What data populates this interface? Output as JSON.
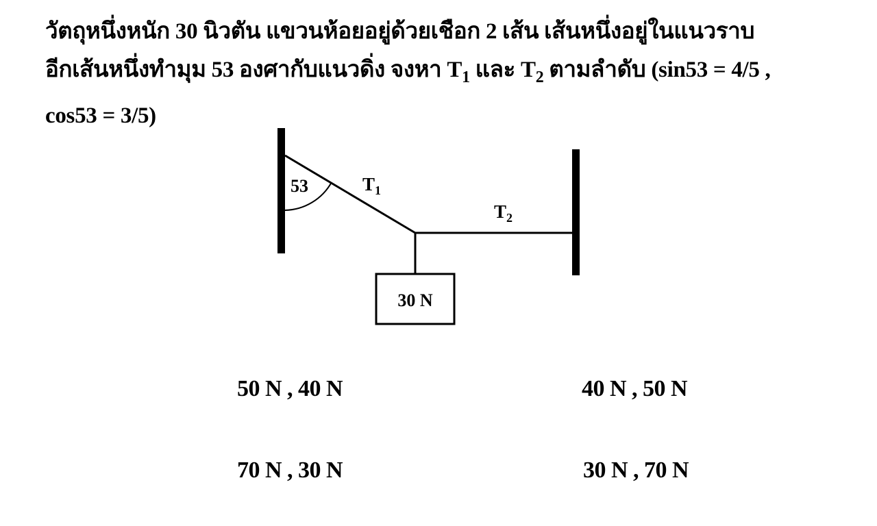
{
  "question": {
    "line1": "วัตถุหนึ่งหนัก 30 นิวตัน แขวนห้อยอยู่ด้วยเชือก 2 เส้น เส้นหนึ่งอยู่ในแนวราบ",
    "line2_a": "อีกเส้นหนึ่งทำมุม 53 องศากับแนวดิ่ง จงหา T",
    "line2_sub1": "1",
    "line2_b": " และ T",
    "line2_sub2": "2",
    "line2_c": " ตามลำดับ (sin53 = 4/5 ,",
    "line3": "cos53 = 3/5)"
  },
  "diagram": {
    "angle_label": "53",
    "t1_label": "T",
    "t1_sub": "1",
    "t2_label": "T",
    "t2_sub": "2",
    "weight_label": "30 N"
  },
  "choices": [
    {
      "label": "50 N , 40 N"
    },
    {
      "label": "40 N , 50 N"
    },
    {
      "label": "70 N , 30 N"
    },
    {
      "label": "30 N , 70 N"
    }
  ]
}
